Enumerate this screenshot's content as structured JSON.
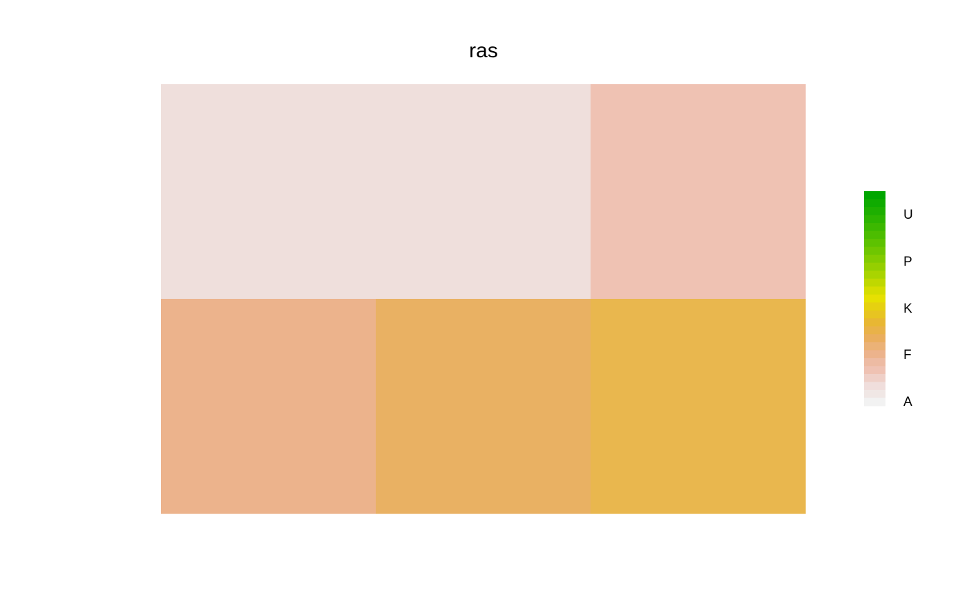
{
  "chart_data": {
    "type": "heatmap",
    "title": "ras",
    "xlabel": "",
    "ylabel": "",
    "grid": false,
    "legend_position": "right",
    "ncols": 3,
    "nrows": 2,
    "cells": [
      {
        "row": 0,
        "col": 0,
        "color": "#efdfdc"
      },
      {
        "row": 0,
        "col": 1,
        "color": "#efdfdc"
      },
      {
        "row": 0,
        "col": 2,
        "color": "#efc2b3"
      },
      {
        "row": 1,
        "col": 0,
        "color": "#ecb38c"
      },
      {
        "row": 1,
        "col": 1,
        "color": "#e9b163"
      },
      {
        "row": 1,
        "col": 2,
        "color": "#e9b74e"
      }
    ],
    "legend": {
      "labels": [
        "U",
        "P",
        "K",
        "F",
        "A"
      ],
      "color_steps": [
        "#00a600",
        "#0fab00",
        "#1daf00",
        "#2cb400",
        "#3cb800",
        "#4cbd00",
        "#5dc200",
        "#6fc600",
        "#82cb00",
        "#95cf00",
        "#a9d400",
        "#bfd800",
        "#d5dd00",
        "#e6e002",
        "#e6d110",
        "#e7c421",
        "#e8b733",
        "#e9b249",
        "#eaae5e",
        "#ebb277",
        "#ecb38c",
        "#edbba3",
        "#efc2b3",
        "#efd0c8",
        "#f0dedc",
        "#f0e7e5",
        "#f2f2f2"
      ]
    }
  }
}
